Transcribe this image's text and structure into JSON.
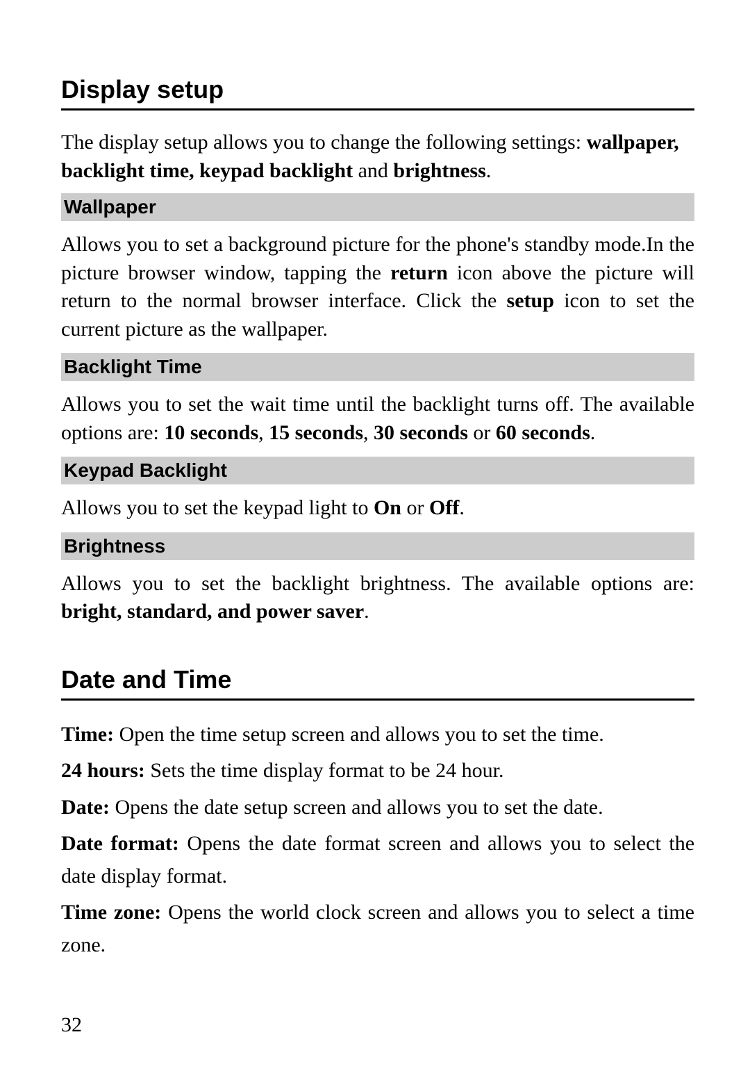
{
  "display_setup": {
    "heading": "Display setup",
    "intro_pre": "The display setup allows you to change the following settings: ",
    "intro_bold": "wallpaper, backlight time, keypad backlight",
    "intro_mid": " and ",
    "intro_bold2": "brightness",
    "intro_post": ".",
    "wallpaper": {
      "title": "Wallpaper",
      "p1a": "Allows you to set a background picture for the phone's standby mode.In the picture browser window, tapping the ",
      "p1b": "return",
      "p1c": " icon above the picture will return to the normal browser interface. Click the ",
      "p1d": "setup",
      "p1e": " icon to set the current picture as the wallpaper."
    },
    "backlight": {
      "title": "Backlight Time",
      "p1a": "Allows you to set the wait time until the backlight turns off. The available options are: ",
      "o1": "10 seconds",
      "c1": ", ",
      "o2": "15 seconds",
      "c2": ", ",
      "o3": "30 seconds",
      "c3": " or ",
      "o4": "60 seconds",
      "p1e": "."
    },
    "keypad": {
      "title": "Keypad Backlight",
      "p1a": "Allows you to set the keypad light to ",
      "o1": "On",
      "c1": " or ",
      "o2": "Off",
      "p1e": "."
    },
    "brightness": {
      "title": "Brightness",
      "p1a": "Allows you to set the backlight brightness. The available options are: ",
      "o1": "bright, standard, and power saver",
      "p1e": "."
    }
  },
  "date_time": {
    "heading": "Date and Time",
    "items": {
      "time_l": "Time:",
      "time_t": " Open the time setup screen and allows you to set the time.",
      "h24_l": "24 hours:",
      "h24_t": " Sets the time display format to be 24 hour.",
      "date_l": "Date:",
      "date_t": " Opens the date setup screen and allows you to set the date.",
      "datefmt_l": "Date format:",
      "datefmt_t": " Opens the date format screen and allows you to select the date display format.",
      "tz_l": "Time zone:",
      "tz_t": " Opens the world clock screen and allows you to select a time zone."
    }
  },
  "page_number": "32"
}
